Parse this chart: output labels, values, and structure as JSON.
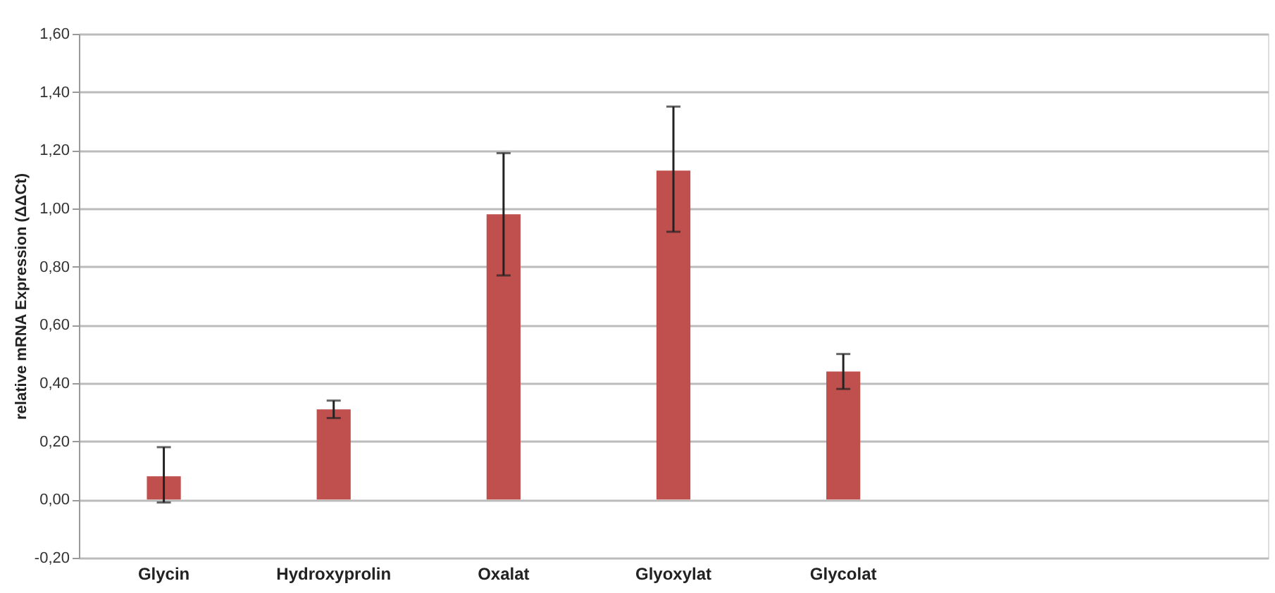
{
  "chart_data": {
    "type": "bar",
    "ylabel": "relative mRNA Expression  (ΔΔCt)",
    "categories": [
      "Glycin",
      "Hydroxyprolin",
      "Oxalat",
      "Glyoxylat",
      "Glycolat",
      null,
      null
    ],
    "values": [
      0.08,
      0.31,
      0.98,
      1.13,
      0.44,
      null,
      null
    ],
    "errors": [
      [
        -0.01,
        0.18
      ],
      [
        0.28,
        0.34
      ],
      [
        0.77,
        1.19
      ],
      [
        0.92,
        1.35
      ],
      [
        0.38,
        0.5
      ],
      null,
      null
    ],
    "color": "#c0504d",
    "ylim": [
      -0.2,
      1.6
    ],
    "yticks": [
      {
        "value": -0.2,
        "label": "-0,20"
      },
      {
        "value": 0,
        "label": "0,00"
      },
      {
        "value": 0.2,
        "label": "0,20"
      },
      {
        "value": 0.4,
        "label": "0,40"
      },
      {
        "value": 0.6,
        "label": "0,60"
      },
      {
        "value": 0.8,
        "label": "0,80"
      },
      {
        "value": 1.0,
        "label": "1,00"
      },
      {
        "value": 1.2,
        "label": "1,20"
      },
      {
        "value": 1.4,
        "label": "1,40"
      },
      {
        "value": 1.6,
        "label": "1,60"
      }
    ],
    "grid": "y"
  }
}
